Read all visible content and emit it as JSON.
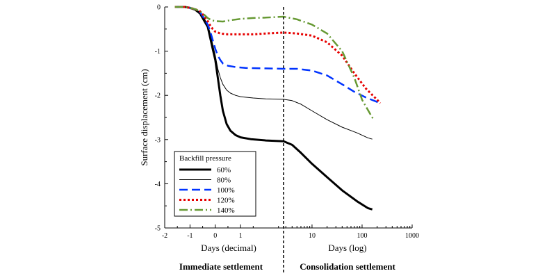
{
  "chart_data": {
    "type": "line",
    "title": "",
    "ylabel": "Surface displacement (cm)",
    "ylim": [
      -5,
      0
    ],
    "y_ticks": [
      "0",
      "-1",
      "-2",
      "-3",
      "-4",
      "-5"
    ],
    "grid": false,
    "legend_position": "bottom-left",
    "legend_title": "Backfill pressure",
    "divider_label": "",
    "panels": [
      {
        "name": "decimal",
        "xlabel": "Days (decimal)",
        "scale": "linear",
        "xlim": [
          -2,
          2.7
        ],
        "x_ticks": [
          -2,
          -1,
          0,
          1
        ],
        "x_tick_labels": [
          "-2",
          "-1",
          "0",
          "1"
        ],
        "phase_label": "Immediate settlement"
      },
      {
        "name": "log",
        "xlabel": "Days (log)",
        "scale": "log",
        "xlim": [
          2.7,
          1000
        ],
        "x_ticks": [
          10,
          100,
          1000
        ],
        "x_tick_labels": [
          "10",
          "100",
          "1000"
        ],
        "phase_label": "Consolidation settlement"
      }
    ],
    "series": [
      {
        "name": "60%",
        "color": "#000000",
        "dash": "solid",
        "width": 3,
        "decimal": [
          [
            -1.6,
            0
          ],
          [
            -1.2,
            0
          ],
          [
            -1.0,
            -0.02
          ],
          [
            -0.8,
            -0.06
          ],
          [
            -0.6,
            -0.15
          ],
          [
            -0.45,
            -0.3
          ],
          [
            -0.3,
            -0.45
          ],
          [
            -0.2,
            -0.7
          ],
          [
            -0.1,
            -0.95
          ],
          [
            0,
            -1.2
          ],
          [
            0.1,
            -1.6
          ],
          [
            0.2,
            -2.0
          ],
          [
            0.3,
            -2.35
          ],
          [
            0.45,
            -2.65
          ],
          [
            0.6,
            -2.8
          ],
          [
            0.8,
            -2.9
          ],
          [
            1.0,
            -2.95
          ],
          [
            1.4,
            -2.99
          ],
          [
            2.0,
            -3.02
          ],
          [
            2.7,
            -3.04
          ]
        ],
        "log": [
          [
            2.7,
            -3.04
          ],
          [
            4,
            -3.12
          ],
          [
            6,
            -3.3
          ],
          [
            10,
            -3.55
          ],
          [
            20,
            -3.85
          ],
          [
            40,
            -4.15
          ],
          [
            80,
            -4.4
          ],
          [
            130,
            -4.55
          ],
          [
            160,
            -4.58
          ]
        ]
      },
      {
        "name": "80%",
        "color": "#000000",
        "dash": "solid",
        "width": 1,
        "decimal": [
          [
            -1.6,
            0
          ],
          [
            -1.2,
            0
          ],
          [
            -1.0,
            -0.02
          ],
          [
            -0.8,
            -0.05
          ],
          [
            -0.6,
            -0.12
          ],
          [
            -0.45,
            -0.25
          ],
          [
            -0.3,
            -0.4
          ],
          [
            -0.2,
            -0.6
          ],
          [
            -0.1,
            -0.85
          ],
          [
            0,
            -1.1
          ],
          [
            0.1,
            -1.4
          ],
          [
            0.2,
            -1.6
          ],
          [
            0.3,
            -1.75
          ],
          [
            0.45,
            -1.88
          ],
          [
            0.6,
            -1.95
          ],
          [
            0.8,
            -2.0
          ],
          [
            1.0,
            -2.03
          ],
          [
            1.5,
            -2.06
          ],
          [
            2.0,
            -2.08
          ],
          [
            2.7,
            -2.09
          ]
        ],
        "log": [
          [
            2.7,
            -2.09
          ],
          [
            4,
            -2.12
          ],
          [
            6,
            -2.2
          ],
          [
            10,
            -2.35
          ],
          [
            20,
            -2.55
          ],
          [
            40,
            -2.72
          ],
          [
            80,
            -2.85
          ],
          [
            130,
            -2.96
          ],
          [
            160,
            -2.99
          ]
        ]
      },
      {
        "name": "100%",
        "color": "#0033ff",
        "dash": "12 6",
        "width": 2.5,
        "decimal": [
          [
            -1.6,
            0
          ],
          [
            -1.2,
            0
          ],
          [
            -1.0,
            -0.02
          ],
          [
            -0.8,
            -0.05
          ],
          [
            -0.6,
            -0.12
          ],
          [
            -0.45,
            -0.25
          ],
          [
            -0.3,
            -0.4
          ],
          [
            -0.2,
            -0.55
          ],
          [
            -0.1,
            -0.75
          ],
          [
            0,
            -0.95
          ],
          [
            0.1,
            -1.1
          ],
          [
            0.2,
            -1.2
          ],
          [
            0.3,
            -1.28
          ],
          [
            0.5,
            -1.33
          ],
          [
            0.8,
            -1.36
          ],
          [
            1.2,
            -1.38
          ],
          [
            2.0,
            -1.39
          ],
          [
            2.7,
            -1.4
          ]
        ],
        "log": [
          [
            2.7,
            -1.4
          ],
          [
            5,
            -1.4
          ],
          [
            10,
            -1.44
          ],
          [
            20,
            -1.55
          ],
          [
            40,
            -1.75
          ],
          [
            70,
            -1.92
          ],
          [
            120,
            -2.05
          ],
          [
            200,
            -2.15
          ],
          [
            230,
            -2.18
          ]
        ]
      },
      {
        "name": "120%",
        "color": "#e60000",
        "dash": "3 3",
        "width": 3,
        "decimal": [
          [
            -1.6,
            0
          ],
          [
            -1.2,
            0
          ],
          [
            -1.0,
            -0.02
          ],
          [
            -0.8,
            -0.05
          ],
          [
            -0.6,
            -0.1
          ],
          [
            -0.45,
            -0.2
          ],
          [
            -0.3,
            -0.32
          ],
          [
            -0.2,
            -0.42
          ],
          [
            -0.1,
            -0.5
          ],
          [
            0,
            -0.56
          ],
          [
            0.2,
            -0.6
          ],
          [
            0.5,
            -0.62
          ],
          [
            1.0,
            -0.62
          ],
          [
            1.5,
            -0.62
          ],
          [
            2.0,
            -0.6
          ],
          [
            2.7,
            -0.58
          ]
        ],
        "log": [
          [
            2.7,
            -0.58
          ],
          [
            5,
            -0.6
          ],
          [
            10,
            -0.65
          ],
          [
            20,
            -0.8
          ],
          [
            40,
            -1.1
          ],
          [
            70,
            -1.5
          ],
          [
            120,
            -1.85
          ],
          [
            200,
            -2.1
          ],
          [
            230,
            -2.18
          ]
        ]
      },
      {
        "name": "140%",
        "color": "#669933",
        "dash": "12 4 2 4",
        "width": 2.5,
        "decimal": [
          [
            -1.6,
            0
          ],
          [
            -1.2,
            0
          ],
          [
            -1.0,
            -0.02
          ],
          [
            -0.8,
            -0.05
          ],
          [
            -0.6,
            -0.1
          ],
          [
            -0.45,
            -0.17
          ],
          [
            -0.3,
            -0.25
          ],
          [
            -0.15,
            -0.3
          ],
          [
            0,
            -0.32
          ],
          [
            0.3,
            -0.33
          ],
          [
            0.6,
            -0.3
          ],
          [
            1.0,
            -0.27
          ],
          [
            1.5,
            -0.25
          ],
          [
            2.0,
            -0.24
          ],
          [
            2.7,
            -0.22
          ]
        ],
        "log": [
          [
            2.7,
            -0.22
          ],
          [
            5,
            -0.28
          ],
          [
            10,
            -0.4
          ],
          [
            20,
            -0.6
          ],
          [
            40,
            -1.0
          ],
          [
            70,
            -1.6
          ],
          [
            100,
            -2.1
          ],
          [
            150,
            -2.45
          ],
          [
            170,
            -2.55
          ]
        ]
      }
    ]
  }
}
